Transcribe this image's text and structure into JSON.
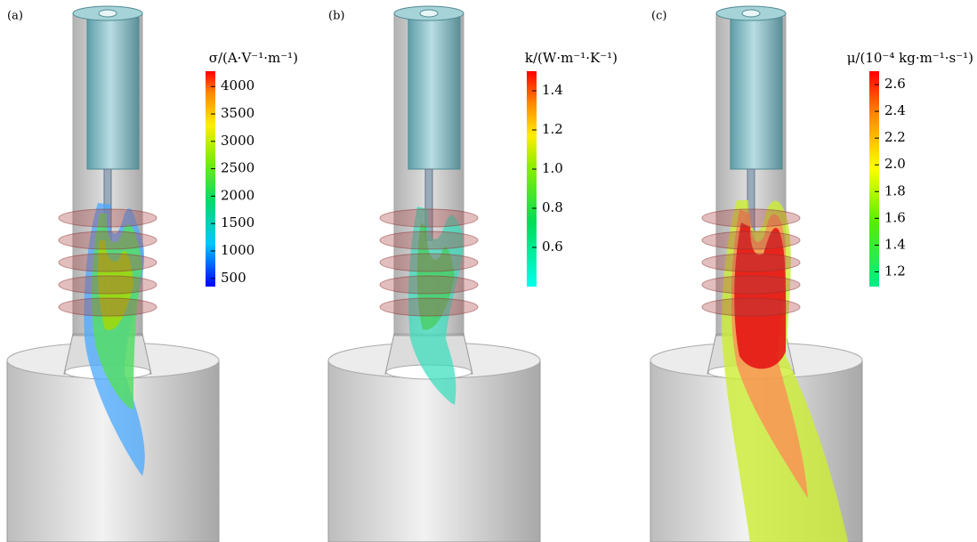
{
  "panels": [
    {
      "label": "(a)",
      "colorbar": {
        "title": "σ/(A·V⁻¹·m⁻¹)",
        "lim": [
          350,
          4280
        ],
        "ticks": [
          500,
          1000,
          1500,
          2000,
          2500,
          3000,
          3500,
          4000
        ]
      }
    },
    {
      "label": "(b)",
      "colorbar": {
        "title": "k/(W·m⁻¹·K⁻¹)",
        "lim": [
          0.4,
          1.5
        ],
        "ticks": [
          0.6,
          0.8,
          {
            "value": 1,
            "label": "1.0"
          },
          1.2,
          1.4
        ]
      }
    },
    {
      "label": "(c)",
      "colorbar": {
        "title": "μ/(10⁻⁴ kg·m⁻¹·s⁻¹)",
        "lim": [
          1.09,
          2.7
        ],
        "ticks": [
          1.2,
          1.4,
          1.6,
          1.8,
          {
            "value": 2,
            "label": "2.0"
          },
          2.2,
          2.4,
          2.6
        ]
      }
    }
  ]
}
